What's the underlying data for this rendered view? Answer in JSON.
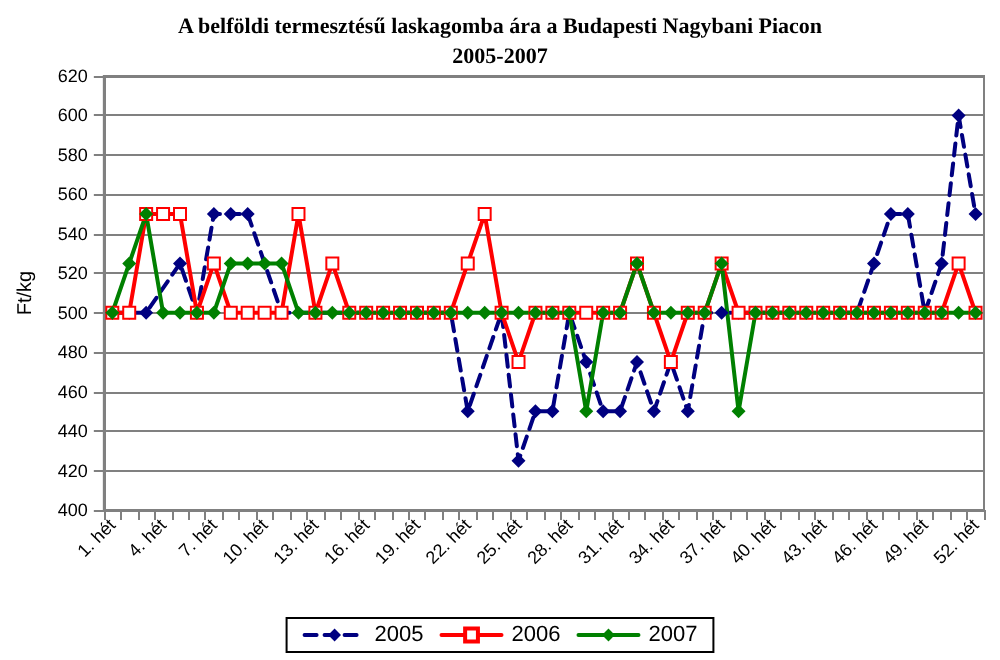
{
  "chart_data": {
    "type": "line",
    "title": "A belföldi termesztésű laskagomba ára a Budapesti Nagybani Piacon",
    "subtitle": "2005-2007",
    "ylabel": "Ft/kg",
    "categories": [
      "1. hét",
      null,
      null,
      "4. hét",
      null,
      null,
      "7. hét",
      null,
      null,
      "10. hét",
      null,
      null,
      "13. hét",
      null,
      null,
      "16. hét",
      null,
      null,
      "19. hét",
      null,
      null,
      "22. hét",
      null,
      null,
      "25. hét",
      null,
      null,
      "28. hét",
      null,
      null,
      "31. hét",
      null,
      null,
      "34. hét",
      null,
      null,
      "37. hét",
      null,
      null,
      "40. hét",
      null,
      null,
      "43. hét",
      null,
      null,
      "46. hét",
      null,
      null,
      "49. hét",
      null,
      null,
      "52. hét"
    ],
    "series": [
      {
        "name": "2005",
        "color": "#000080",
        "marker": "diamond",
        "line_style": "dashed",
        "values": [
          500,
          500,
          500,
          null,
          525,
          500,
          550,
          550,
          550,
          null,
          500,
          null,
          500,
          null,
          500,
          500,
          500,
          500,
          500,
          500,
          500,
          450,
          null,
          500,
          425,
          450,
          450,
          500,
          475,
          450,
          450,
          475,
          450,
          475,
          450,
          500,
          500,
          500,
          500,
          500,
          500,
          500,
          500,
          500,
          500,
          525,
          550,
          550,
          500,
          525,
          600,
          550
        ]
      },
      {
        "name": "2006",
        "color": "#ff0000",
        "marker": "square",
        "line_style": "solid",
        "values": [
          500,
          500,
          550,
          550,
          550,
          500,
          525,
          500,
          500,
          500,
          500,
          550,
          500,
          525,
          500,
          500,
          500,
          500,
          500,
          500,
          500,
          525,
          550,
          500,
          475,
          500,
          500,
          500,
          500,
          500,
          500,
          525,
          500,
          475,
          500,
          500,
          525,
          500,
          500,
          500,
          500,
          500,
          500,
          500,
          500,
          500,
          500,
          500,
          500,
          500,
          525,
          500
        ]
      },
      {
        "name": "2007",
        "color": "#008000",
        "marker": "diamond",
        "line_style": "solid",
        "values": [
          500,
          525,
          550,
          500,
          500,
          500,
          500,
          525,
          525,
          525,
          525,
          500,
          500,
          500,
          500,
          500,
          500,
          500,
          500,
          500,
          500,
          500,
          500,
          500,
          500,
          500,
          500,
          500,
          450,
          500,
          500,
          525,
          500,
          500,
          500,
          500,
          525,
          450,
          500,
          500,
          500,
          500,
          500,
          500,
          500,
          500,
          500,
          500,
          500,
          500,
          500,
          500
        ]
      }
    ],
    "ylim": [
      400,
      620
    ],
    "yticks": [
      400,
      420,
      440,
      460,
      480,
      500,
      520,
      540,
      560,
      580,
      600,
      620
    ],
    "grid": "y",
    "legend": "bottom"
  }
}
